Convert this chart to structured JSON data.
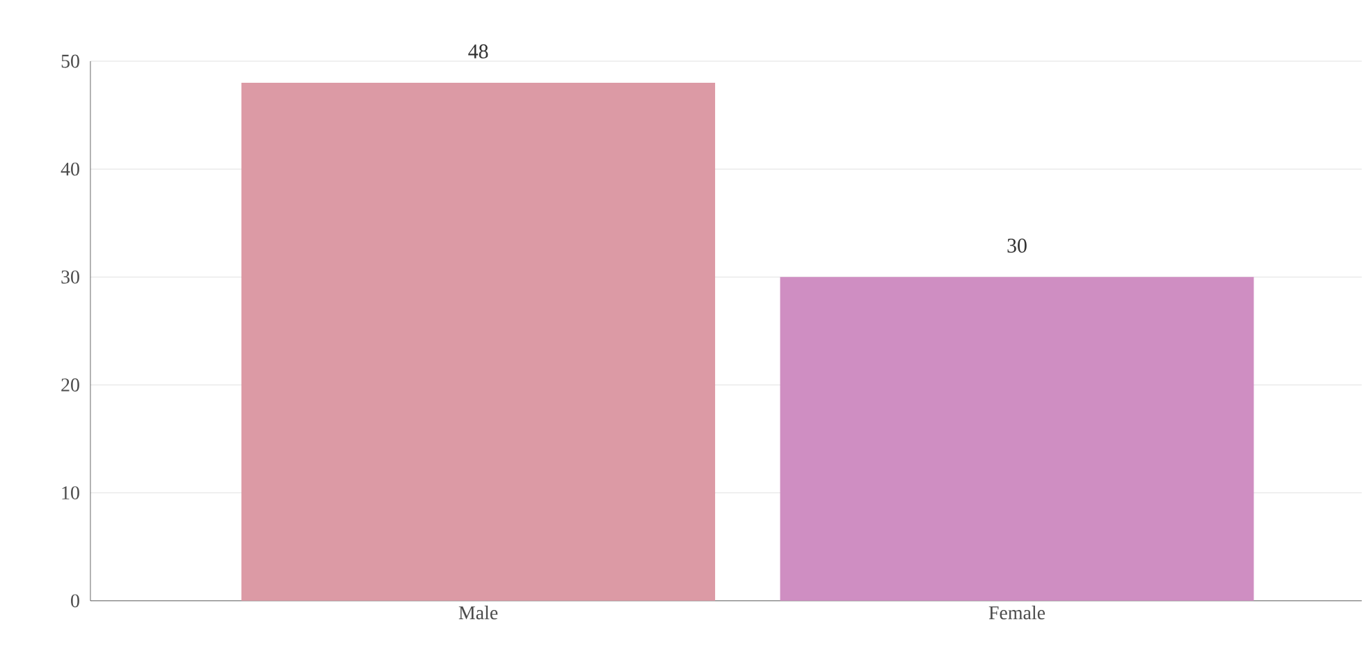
{
  "chart_data": {
    "type": "bar",
    "categories": [
      "Male",
      "Female"
    ],
    "values": [
      48,
      30
    ],
    "colors": [
      "#dc9aa5",
      "#cf8ec2"
    ],
    "ylim": [
      0,
      50
    ],
    "yticks": [
      0,
      10,
      20,
      30,
      40,
      50
    ],
    "grid": "y",
    "data_labels": true
  }
}
